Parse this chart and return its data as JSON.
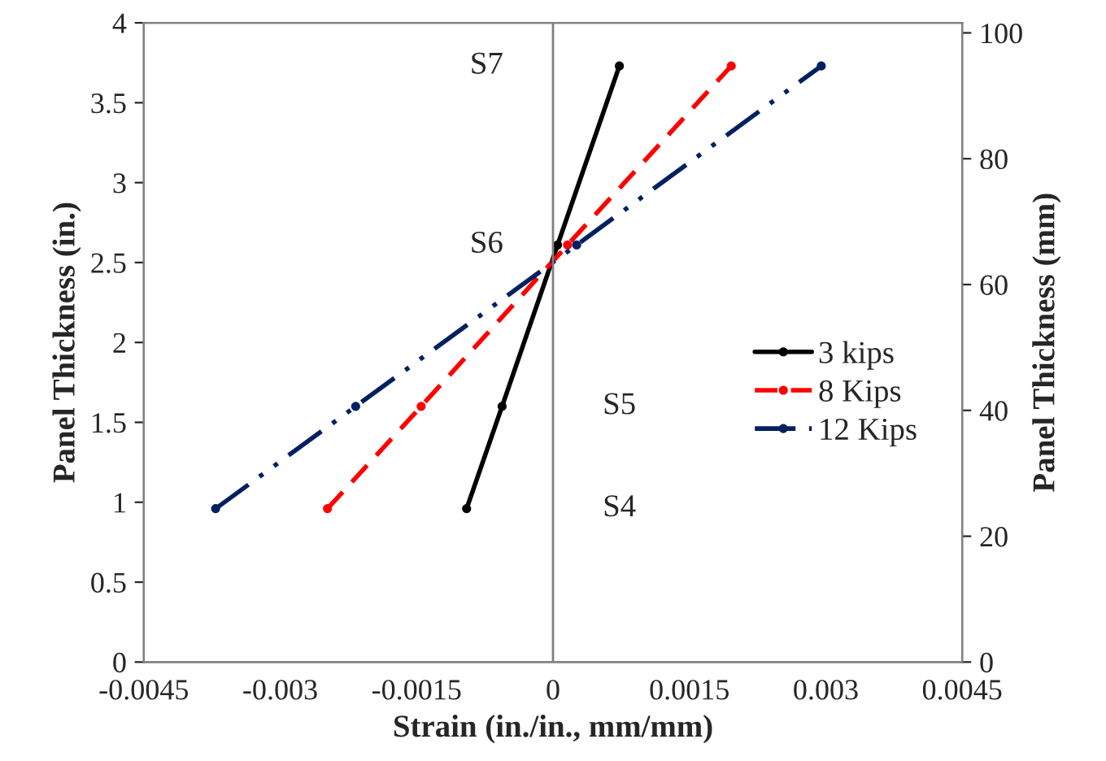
{
  "chart_data": {
    "type": "line",
    "xlabel": "Strain (in./in., mm/mm)",
    "ylabel": "Panel Thickness (in.)",
    "y2label": "Panel Thickness (mm)",
    "xlim": [
      -0.0045,
      0.0045
    ],
    "xticks": [
      -0.0045,
      -0.003,
      -0.0015,
      0,
      0.0015,
      0.003,
      0.0045
    ],
    "ylim": [
      0,
      4
    ],
    "yticks": [
      0,
      0.5,
      1,
      1.5,
      2,
      2.5,
      3,
      3.5,
      4
    ],
    "y2lim": [
      0,
      101.6
    ],
    "y2ticks": [
      0,
      20,
      40,
      60,
      80,
      100
    ],
    "grid": false,
    "legend": "right",
    "marker": "circle",
    "series": [
      {
        "name": "3 kips",
        "color": "#000000",
        "line_style": "solid",
        "x": [
          -0.00095,
          -0.00056,
          5e-05,
          0.00073
        ],
        "values": [
          0.96,
          1.6,
          2.61,
          3.73
        ]
      },
      {
        "name": "8 Kips",
        "color": "#ff0000",
        "line_style": "dashed",
        "x": [
          -0.00248,
          -0.00145,
          0.00016,
          0.00196
        ],
        "values": [
          0.96,
          1.6,
          2.61,
          3.73
        ]
      },
      {
        "name": "12 Kips",
        "color": "#002060",
        "line_style": "dashdot",
        "x": [
          -0.00371,
          -0.00217,
          0.00026,
          0.00295
        ],
        "values": [
          0.96,
          1.6,
          2.61,
          3.73
        ]
      }
    ],
    "ref_lines": [
      {
        "axis": "x",
        "value": 0,
        "label": null,
        "color": "#808080"
      }
    ],
    "annotations": [
      "S4",
      "S5",
      "S6",
      "S7"
    ]
  }
}
